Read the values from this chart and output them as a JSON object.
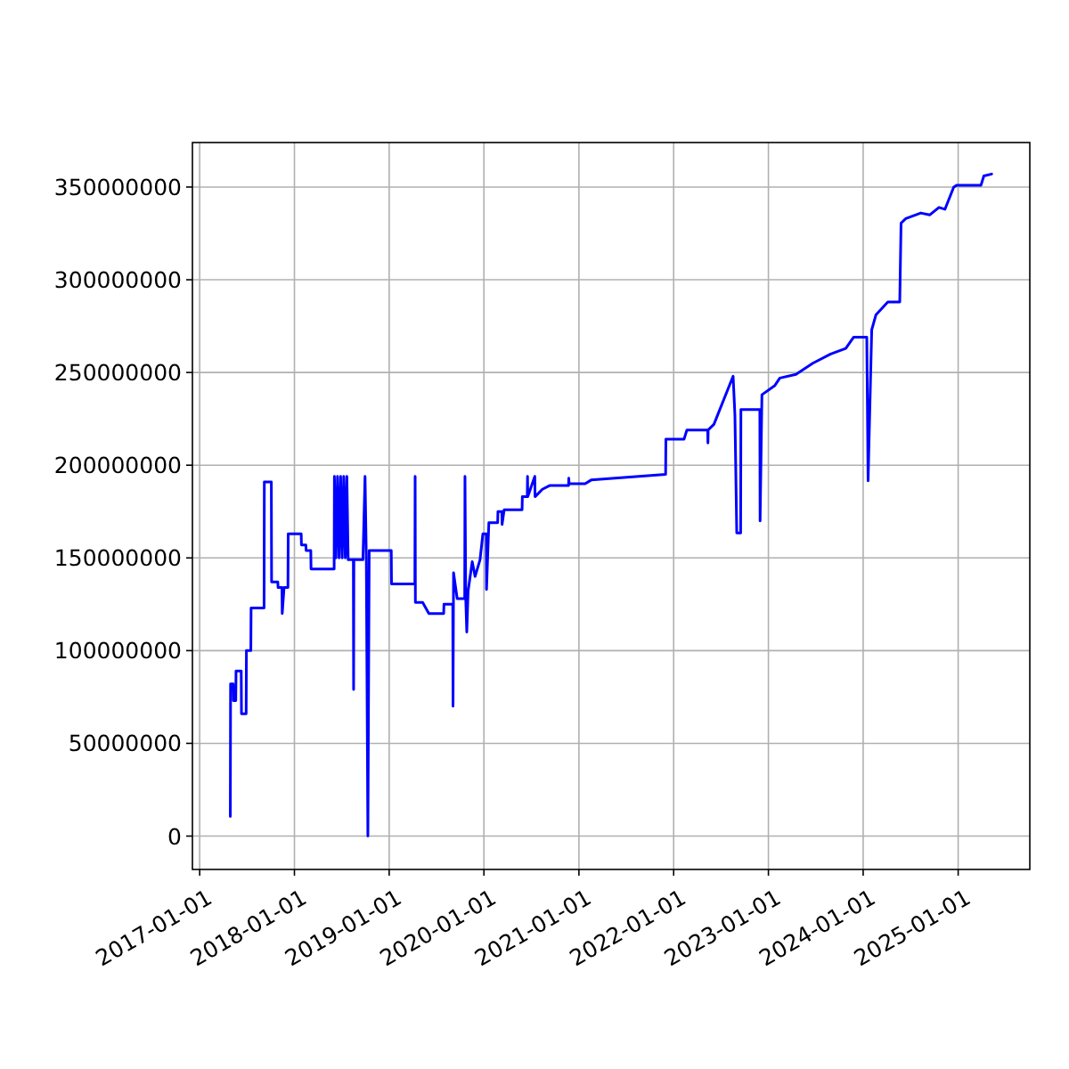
{
  "chart_data": {
    "type": "line",
    "grid": true,
    "xlim": [
      "2016-12-04",
      "2025-10-04"
    ],
    "xticks": [
      "2017-01-01",
      "2018-01-01",
      "2019-01-01",
      "2020-01-01",
      "2021-01-01",
      "2022-01-01",
      "2023-01-01",
      "2024-01-01",
      "2025-01-01"
    ],
    "ylim": [
      -18000000,
      374000000
    ],
    "yticks": [
      0,
      50000000,
      100000000,
      150000000,
      200000000,
      250000000,
      300000000,
      350000000
    ],
    "series": [
      {
        "color": "#0000ff",
        "x": [
          "2017-04-29",
          "2017-04-30",
          "2017-05-10",
          "2017-05-11",
          "2017-05-20",
          "2017-05-21",
          "2017-06-10",
          "2017-06-11",
          "2017-06-29",
          "2017-06-30",
          "2017-07-17",
          "2017-07-18",
          "2017-09-06",
          "2017-09-07",
          "2017-10-04",
          "2017-10-05",
          "2017-10-29",
          "2017-10-30",
          "2017-11-14",
          "2017-11-15",
          "2017-11-22",
          "2017-12-07",
          "2017-12-08",
          "2018-01-27",
          "2018-01-28",
          "2018-02-14",
          "2018-02-15",
          "2018-03-05",
          "2018-03-06",
          "2018-06-03",
          "2018-06-04",
          "2018-06-10",
          "2018-06-16",
          "2018-06-22",
          "2018-06-28",
          "2018-07-04",
          "2018-07-10",
          "2018-07-16",
          "2018-07-22",
          "2018-07-27",
          "2018-08-16",
          "2018-08-17",
          "2018-08-18",
          "2018-09-22",
          "2018-09-30",
          "2018-10-05",
          "2018-10-11",
          "2018-10-16",
          "2019-01-09",
          "2019-01-10",
          "2019-04-10",
          "2019-04-11",
          "2019-04-12",
          "2019-05-10",
          "2019-06-03",
          "2019-07-30",
          "2019-07-31",
          "2019-09-03",
          "2019-09-04",
          "2019-09-06",
          "2019-09-20",
          "2019-10-19",
          "2019-10-20",
          "2019-10-23",
          "2019-10-27",
          "2019-11-01",
          "2019-11-17",
          "2019-11-28",
          "2019-12-17",
          "2019-12-28",
          "2020-01-10",
          "2020-01-11",
          "2020-01-20",
          "2020-02-23",
          "2020-02-24",
          "2020-03-10",
          "2020-03-11",
          "2020-03-19",
          "2020-05-27",
          "2020-05-28",
          "2020-06-16",
          "2020-06-17",
          "2020-06-18",
          "2020-07-15",
          "2020-07-16",
          "2020-08-13",
          "2020-09-10",
          "2020-11-22",
          "2020-11-23",
          "2020-11-24",
          "2021-01-25",
          "2021-02-17",
          "2021-08-20",
          "2021-12-01",
          "2021-12-02",
          "2022-02-10",
          "2022-02-21",
          "2022-05-12",
          "2022-05-13",
          "2022-05-14",
          "2022-06-05",
          "2022-08-18",
          "2022-08-25",
          "2022-09-01",
          "2022-09-16",
          "2022-09-17",
          "2022-11-29",
          "2022-11-30",
          "2022-12-07",
          "2023-01-26",
          "2023-02-14",
          "2023-04-17",
          "2023-06-21",
          "2023-08-29",
          "2023-10-26",
          "2023-11-25",
          "2024-01-15",
          "2024-01-20",
          "2024-02-03",
          "2024-02-19",
          "2024-04-05",
          "2024-05-21",
          "2024-05-26",
          "2024-06-13",
          "2024-08-10",
          "2024-09-14",
          "2024-10-19",
          "2024-11-11",
          "2024-12-15",
          "2024-12-27",
          "2025-03-30",
          "2025-04-10",
          "2025-05-10"
        ],
        "values": [
          10600000,
          82000000,
          82000000,
          73000000,
          73000000,
          89000000,
          89000000,
          66000000,
          66000000,
          100000000,
          100000000,
          123000000,
          123000000,
          191000000,
          191000000,
          137000000,
          137000000,
          134000000,
          134000000,
          120000000,
          134000000,
          134000000,
          163000000,
          163000000,
          157000000,
          157000000,
          154000000,
          154000000,
          144000000,
          144000000,
          194000000,
          150000000,
          194000000,
          150000000,
          194000000,
          150000000,
          194000000,
          150000000,
          194000000,
          149000000,
          149000000,
          79000000,
          149000000,
          149000000,
          194000000,
          149000000,
          0,
          154000000,
          154000000,
          136000000,
          136000000,
          194000000,
          126000000,
          126000000,
          120000000,
          120000000,
          125000000,
          125000000,
          70000000,
          142000000,
          128000000,
          128000000,
          194000000,
          128000000,
          110000000,
          132000000,
          148000000,
          140000000,
          149000000,
          163000000,
          163000000,
          133000000,
          169000000,
          169000000,
          175000000,
          175000000,
          168000000,
          176000000,
          176000000,
          183000000,
          183000000,
          194000000,
          183000000,
          194000000,
          183000000,
          187000000,
          189000000,
          189000000,
          193000000,
          190000000,
          190000000,
          192000000,
          194000000,
          195000000,
          214000000,
          214000000,
          219000000,
          219000000,
          212000000,
          219000000,
          222000000,
          248000000,
          227000000,
          163500000,
          163500000,
          230000000,
          230000000,
          170000000,
          238000000,
          243000000,
          247000000,
          249000000,
          255000000,
          260000000,
          263000000,
          269000000,
          269000000,
          191600000,
          273000000,
          281000000,
          288000000,
          288000000,
          330500000,
          333000000,
          336000000,
          335000000,
          339000000,
          338000000,
          350000000,
          351000000,
          351000000,
          356000000,
          357000000
        ]
      }
    ]
  }
}
